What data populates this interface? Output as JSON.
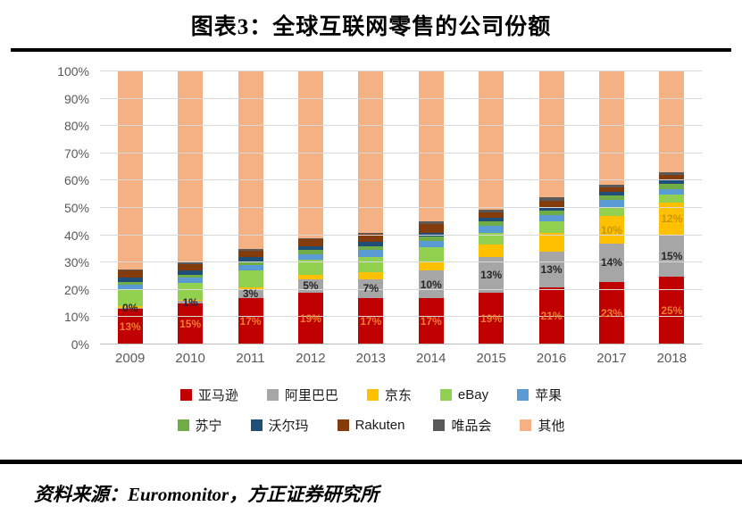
{
  "title": "图表3：全球互联网零售的公司份额",
  "source": "资料来源：Euromonitor，方正证券研究所",
  "chart_data": {
    "type": "bar",
    "stacked": true,
    "title": "图表3：全球互联网零售的公司份额",
    "categories": [
      "2009",
      "2010",
      "2011",
      "2012",
      "2013",
      "2014",
      "2015",
      "2016",
      "2017",
      "2018"
    ],
    "series": [
      {
        "name": "亚马逊",
        "color": "#C00000",
        "label_color": "#ED7D31",
        "values": [
          13,
          15,
          17,
          19,
          17,
          17,
          19,
          21,
          23,
          25
        ],
        "labels": [
          "13%",
          "15%",
          "17%",
          "19%",
          "17%",
          "17%",
          "19%",
          "21%",
          "23%",
          "25%"
        ]
      },
      {
        "name": "阿里巴巴",
        "color": "#A6A6A6",
        "label_color": "#262626",
        "values": [
          0.5,
          1,
          3,
          5,
          7,
          10,
          13,
          13,
          14,
          15
        ],
        "labels": [
          "0%",
          "1%",
          "3%",
          "5%",
          "7%",
          "10%",
          "13%",
          "13%",
          "14%",
          "15%"
        ]
      },
      {
        "name": "京东",
        "color": "#FFC000",
        "label_color": "#C99700",
        "values": [
          0.5,
          0.5,
          1,
          1.5,
          2.5,
          3.5,
          4.5,
          7,
          10,
          12
        ],
        "labels": [
          "",
          "",
          "",
          "",
          "",
          "",
          "",
          "",
          "10%",
          "12%"
        ]
      },
      {
        "name": "eBay",
        "color": "#92D050",
        "label_color": "",
        "values": [
          6,
          6,
          6,
          5.5,
          5.5,
          5,
          4.5,
          4,
          3.5,
          3
        ],
        "labels": []
      },
      {
        "name": "苹果",
        "color": "#5B9BD5",
        "label_color": "",
        "values": [
          2,
          2,
          2,
          2,
          2.5,
          2.5,
          2.5,
          2.5,
          2.5,
          2
        ],
        "labels": []
      },
      {
        "name": "苏宁",
        "color": "#70AD47",
        "label_color": "",
        "values": [
          1,
          1,
          1.5,
          1.5,
          1.5,
          1.5,
          1.5,
          1.5,
          1.5,
          2
        ],
        "labels": []
      },
      {
        "name": "沃尔玛",
        "color": "#1F4E79",
        "label_color": "",
        "values": [
          1.5,
          1.5,
          1.5,
          1.5,
          1.5,
          1.5,
          1.5,
          1.5,
          1.5,
          1.5
        ],
        "labels": []
      },
      {
        "name": "Rakuten",
        "color": "#843C0C",
        "label_color": "",
        "values": [
          2.5,
          2.5,
          2.5,
          2.5,
          3,
          3,
          2,
          2,
          1.5,
          1.5
        ],
        "labels": []
      },
      {
        "name": "唯品会",
        "color": "#595959",
        "label_color": "",
        "values": [
          0.5,
          0.5,
          0.5,
          0.5,
          0.5,
          1,
          1,
          1.5,
          1,
          1
        ],
        "labels": []
      },
      {
        "name": "其他",
        "color": "#F4B183",
        "label_color": "",
        "values": [
          72.5,
          70,
          65,
          61,
          59,
          55,
          50.5,
          46,
          41.5,
          37
        ],
        "labels": []
      }
    ],
    "ylim": [
      0,
      100
    ],
    "yticks": [
      "0%",
      "10%",
      "20%",
      "30%",
      "40%",
      "50%",
      "60%",
      "70%",
      "80%",
      "90%",
      "100%"
    ],
    "axis_color": "#595959",
    "grid_color": "#D9D9D9",
    "legend_position": "bottom",
    "legend_rows": [
      [
        "亚马逊",
        "阿里巴巴",
        "京东",
        "eBay",
        "苹果"
      ],
      [
        "苏宁",
        "沃尔玛",
        "Rakuten",
        "唯品会",
        "其他"
      ]
    ]
  }
}
